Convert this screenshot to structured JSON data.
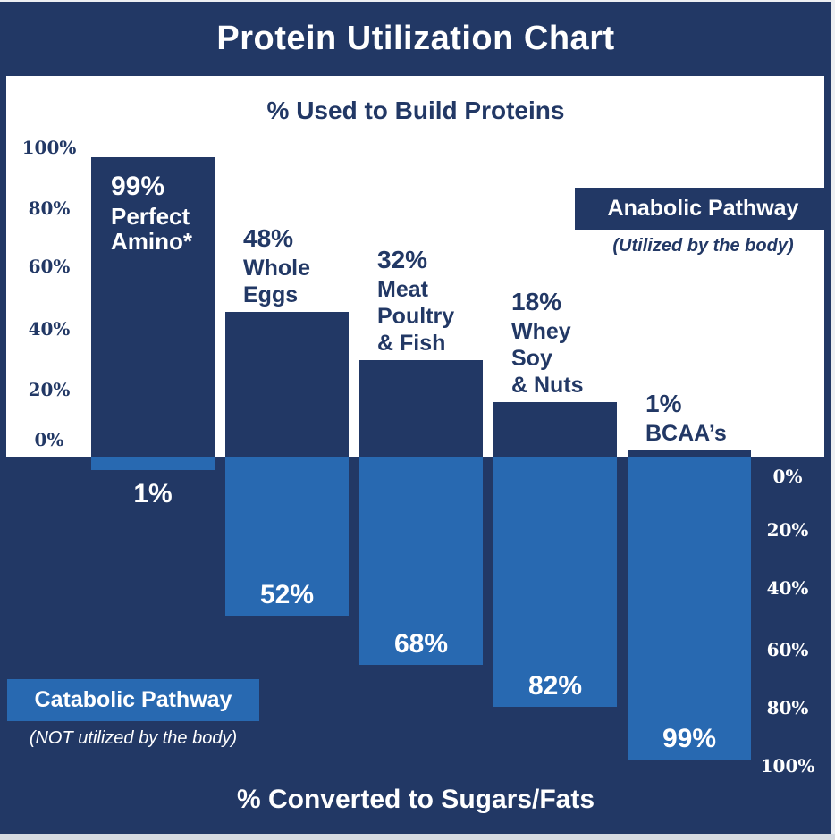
{
  "header": {
    "title": "Protein Utilization Chart"
  },
  "top_axis_title": "% Used to Build Proteins",
  "bottom_axis_title": "% Converted to Sugars/Fats",
  "anabolic": {
    "label": "Anabolic Pathway",
    "caption": "(Utilized by the body)"
  },
  "catabolic": {
    "label": "Catabolic Pathway",
    "caption": "(NOT utilized by the body)"
  },
  "colors": {
    "navy": "#223865",
    "light_blue": "#2869b1",
    "background": "#ffffff",
    "light_text": "#ffffff"
  },
  "axes": {
    "top_ticks": [
      "100%",
      "80%",
      "60%",
      "40%",
      "20%",
      "0%"
    ],
    "bottom_ticks": [
      "0%",
      "20%",
      "40%",
      "60%",
      "80%",
      "100%"
    ]
  },
  "chart_data": {
    "type": "bar",
    "orientation": "diverging-vertical",
    "title": "Protein Utilization Chart",
    "top_half_label": "% Used to Build Proteins",
    "bottom_half_label": "% Converted to Sugars/Fats",
    "categories": [
      "Perfect Amino*",
      "Whole Eggs",
      "Meat Poultry & Fish",
      "Whey Soy & Nuts",
      "BCAA’s"
    ],
    "category_lines": [
      [
        "Perfect",
        "Amino*"
      ],
      [
        "Whole",
        "Eggs"
      ],
      [
        "Meat",
        "Poultry",
        "& Fish"
      ],
      [
        "Whey",
        "Soy",
        "& Nuts"
      ],
      [
        "BCAA’s"
      ]
    ],
    "series": [
      {
        "name": "Anabolic Pathway",
        "description": "(Utilized by the body)",
        "values": [
          99,
          48,
          32,
          18,
          1
        ],
        "labels": [
          "99%",
          "48%",
          "32%",
          "18%",
          "1%"
        ]
      },
      {
        "name": "Catabolic Pathway",
        "description": "(NOT utilized by the body)",
        "values": [
          1,
          52,
          68,
          82,
          99
        ],
        "labels": [
          "1%",
          "52%",
          "68%",
          "82%",
          "99%"
        ]
      }
    ],
    "ylim": [
      0,
      100
    ],
    "grid": false,
    "legend_position": "anabolic top-right, catabolic bottom-left"
  }
}
